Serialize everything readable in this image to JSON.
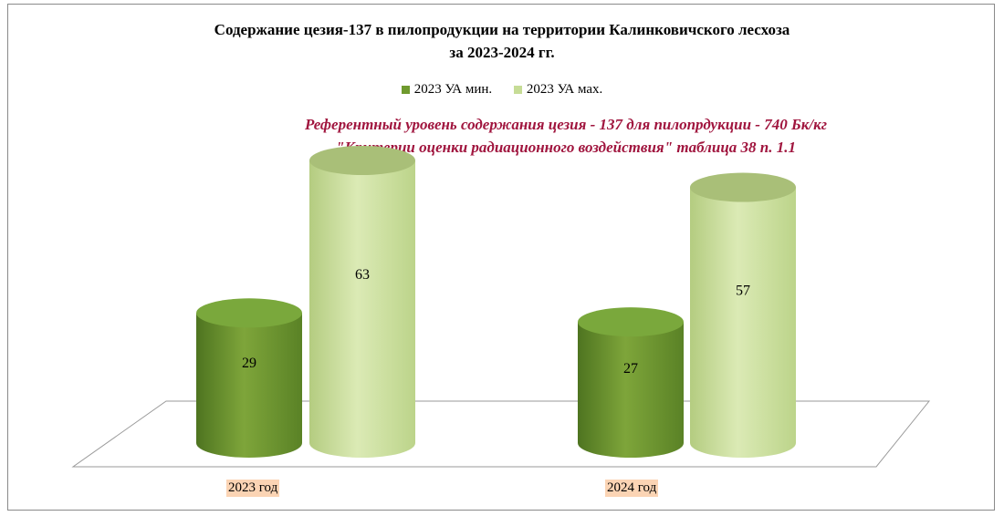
{
  "chart_data": {
    "type": "bar",
    "title_line1": "Содержание цезия-137 в пилопродукции на территории Калинковичского лесхоза",
    "title_line2": "за 2023-2024 гг.",
    "annotation_line1": "Референтный уровень содержания цезия - 137 для пилопрдукции - 740 Бк/кг",
    "annotation_line2": "\"Критерии оценки радиационного воздействия\" таблица 38 п. 1.1",
    "categories": [
      "2023 год",
      "2024 год"
    ],
    "series": [
      {
        "name": "2023 УА мин.",
        "values": [
          29,
          27
        ],
        "color": "#6f9a2e"
      },
      {
        "name": "2023 УА мах.",
        "values": [
          63,
          57
        ],
        "color": "#c6dc96"
      }
    ],
    "ylim": [
      0,
      63
    ],
    "legend_position": "top",
    "grid": false
  }
}
